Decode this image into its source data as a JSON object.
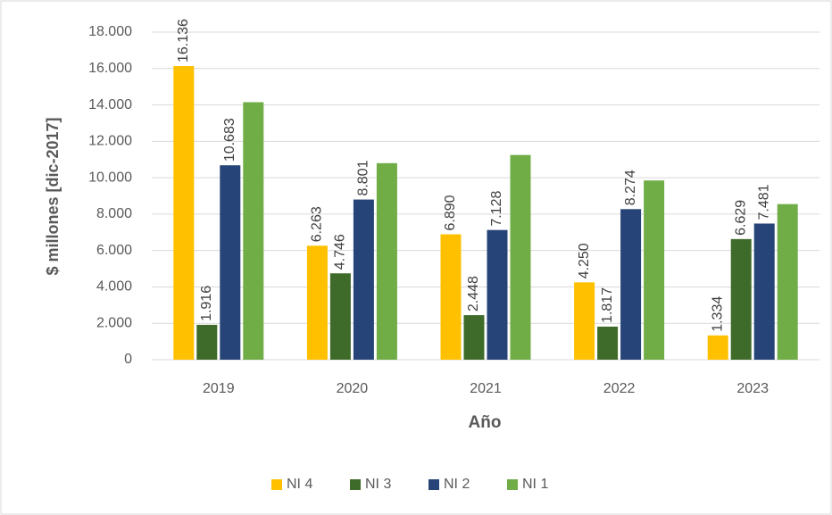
{
  "chart_data": {
    "type": "bar",
    "categories": [
      "2019",
      "2020",
      "2021",
      "2022",
      "2023"
    ],
    "series": [
      {
        "name": "NI 4",
        "color": "#ffc000",
        "values": [
          16136,
          6263,
          6890,
          4250,
          1334
        ],
        "value_labels": [
          "16.136",
          "6.263",
          "6.890",
          "4.250",
          "1.334"
        ]
      },
      {
        "name": "NI 3",
        "color": "#3f6b2a",
        "values": [
          1916,
          4746,
          2448,
          1817,
          6629
        ],
        "value_labels": [
          "1.916",
          "4.746",
          "2.448",
          "1.817",
          "6.629"
        ]
      },
      {
        "name": "NI 2",
        "color": "#264478",
        "values": [
          10683,
          8801,
          7128,
          8274,
          7481
        ],
        "value_labels": [
          "10.683",
          "8.801",
          "7.128",
          "8.274",
          "7.481"
        ]
      },
      {
        "name": "NI 1",
        "color": "#70ad47",
        "values": [
          14150,
          10800,
          11250,
          9850,
          8550
        ]
      }
    ],
    "ylabel": "$ millones  [dic-2017]",
    "xlabel": "Año",
    "ylim": [
      0,
      18000
    ],
    "yticks": [
      0,
      {
        "value": 2000,
        "label": "2.000"
      },
      {
        "value": 4000,
        "label": "4.000"
      },
      {
        "value": 6000,
        "label": "6.000"
      },
      {
        "value": 8000,
        "label": "8.000"
      },
      {
        "value": 10000,
        "label": "10.000"
      },
      {
        "value": 12000,
        "label": "12.000"
      },
      {
        "value": 14000,
        "label": "14.000"
      },
      {
        "value": 16000,
        "label": "16.000"
      },
      {
        "value": 18000,
        "label": "18.000"
      }
    ],
    "grid": true,
    "legend": "bottom"
  }
}
